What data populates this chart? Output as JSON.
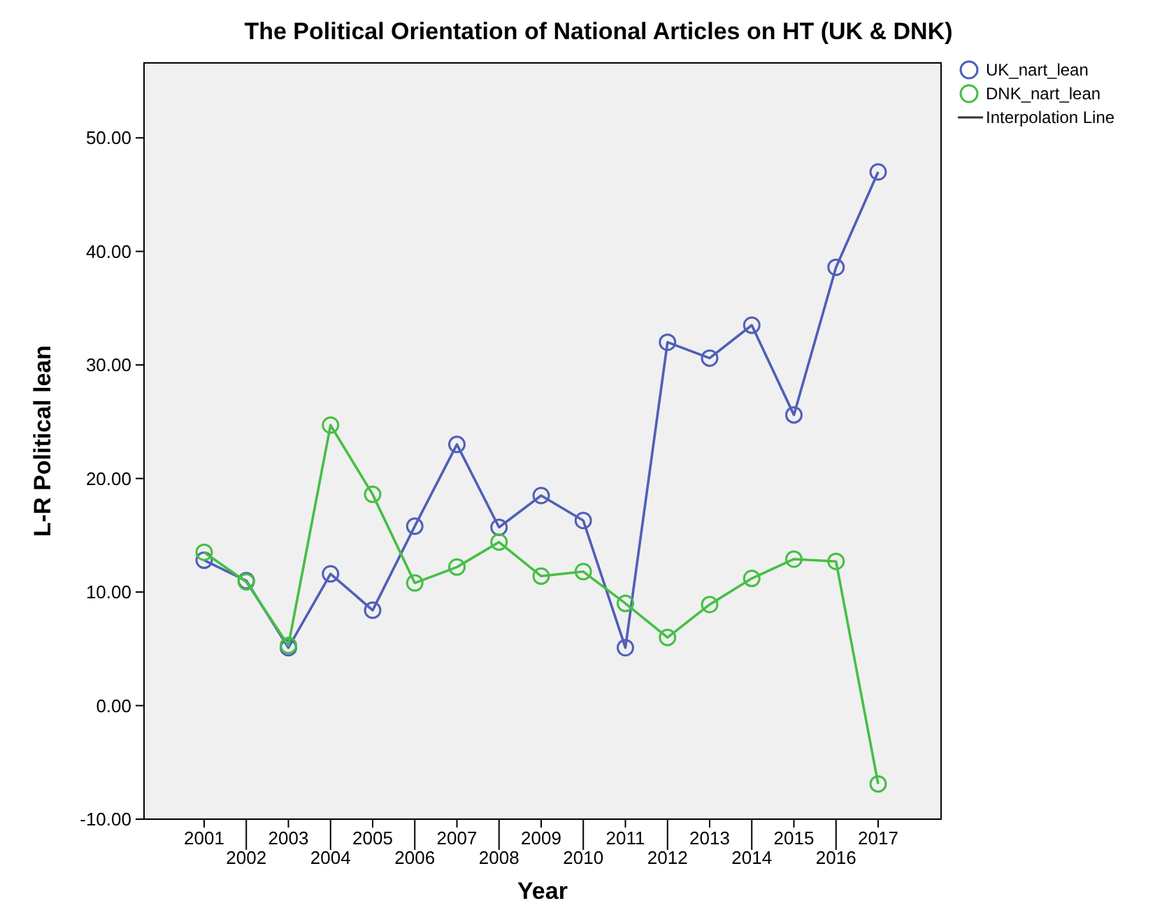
{
  "chart_data": {
    "type": "line",
    "title": "The Political Orientation of National Articles on HT (UK & DNK)",
    "xlabel": "Year",
    "ylabel": "L-R Political lean",
    "categories": [
      "2001",
      "2002",
      "2003",
      "2004",
      "2005",
      "2006",
      "2007",
      "2008",
      "2009",
      "2010",
      "2011",
      "2012",
      "2013",
      "2014",
      "2015",
      "2016",
      "2017"
    ],
    "series": [
      {
        "name": "UK_nart_lean",
        "color": "#4f5fb8",
        "values": [
          12.8,
          11.0,
          5.1,
          11.6,
          8.4,
          15.8,
          23.0,
          15.7,
          18.5,
          16.3,
          5.1,
          32.0,
          30.6,
          33.5,
          25.6,
          38.6,
          47.0
        ]
      },
      {
        "name": "DNK_nart_lean",
        "color": "#45bf45",
        "values": [
          13.5,
          10.9,
          5.3,
          24.7,
          18.6,
          10.8,
          12.2,
          14.4,
          11.4,
          11.8,
          9.0,
          6.0,
          8.9,
          11.2,
          12.9,
          12.7,
          -6.9
        ]
      }
    ],
    "ylim": [
      -10,
      56.6
    ],
    "yticks": [
      {
        "value": -10,
        "label": "-10.00"
      },
      {
        "value": 0,
        "label": "0.00"
      },
      {
        "value": 10,
        "label": "10.00"
      },
      {
        "value": 20,
        "label": "20.00"
      },
      {
        "value": 30,
        "label": "30.00"
      },
      {
        "value": 40,
        "label": "40.00"
      },
      {
        "value": 50,
        "label": "50.00"
      }
    ],
    "annotations": [
      "Interpolation Line"
    ],
    "legend": "top right",
    "marker": "circle",
    "line_style": "solid",
    "grid": false
  }
}
